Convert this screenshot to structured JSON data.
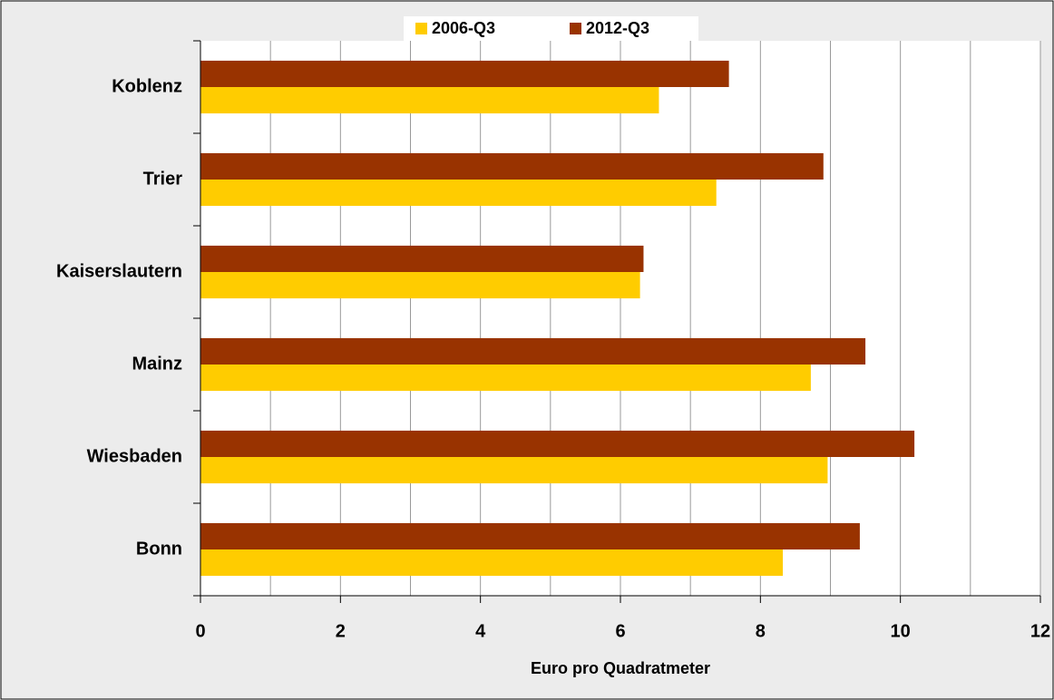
{
  "chart_data": {
    "type": "hbar",
    "categories": [
      "Koblenz",
      "Trier",
      "Kaiserslautern",
      "Mainz",
      "Wiesbaden",
      "Bonn"
    ],
    "series": [
      {
        "name": "2006-Q3",
        "color": "#ffcc00",
        "values": [
          6.55,
          7.37,
          6.28,
          8.72,
          8.96,
          8.32
        ]
      },
      {
        "name": "2012-Q3",
        "color": "#993300",
        "values": [
          7.55,
          8.9,
          6.33,
          9.5,
          10.2,
          9.42
        ]
      }
    ],
    "x_label": "Euro pro Quadratmeter",
    "xlim": [
      0,
      12
    ],
    "xticks": [
      0,
      2,
      4,
      6,
      8,
      10,
      12
    ],
    "minor_xticks": [
      1,
      3,
      5,
      7,
      9,
      11
    ],
    "grid": true,
    "legend": "top"
  }
}
